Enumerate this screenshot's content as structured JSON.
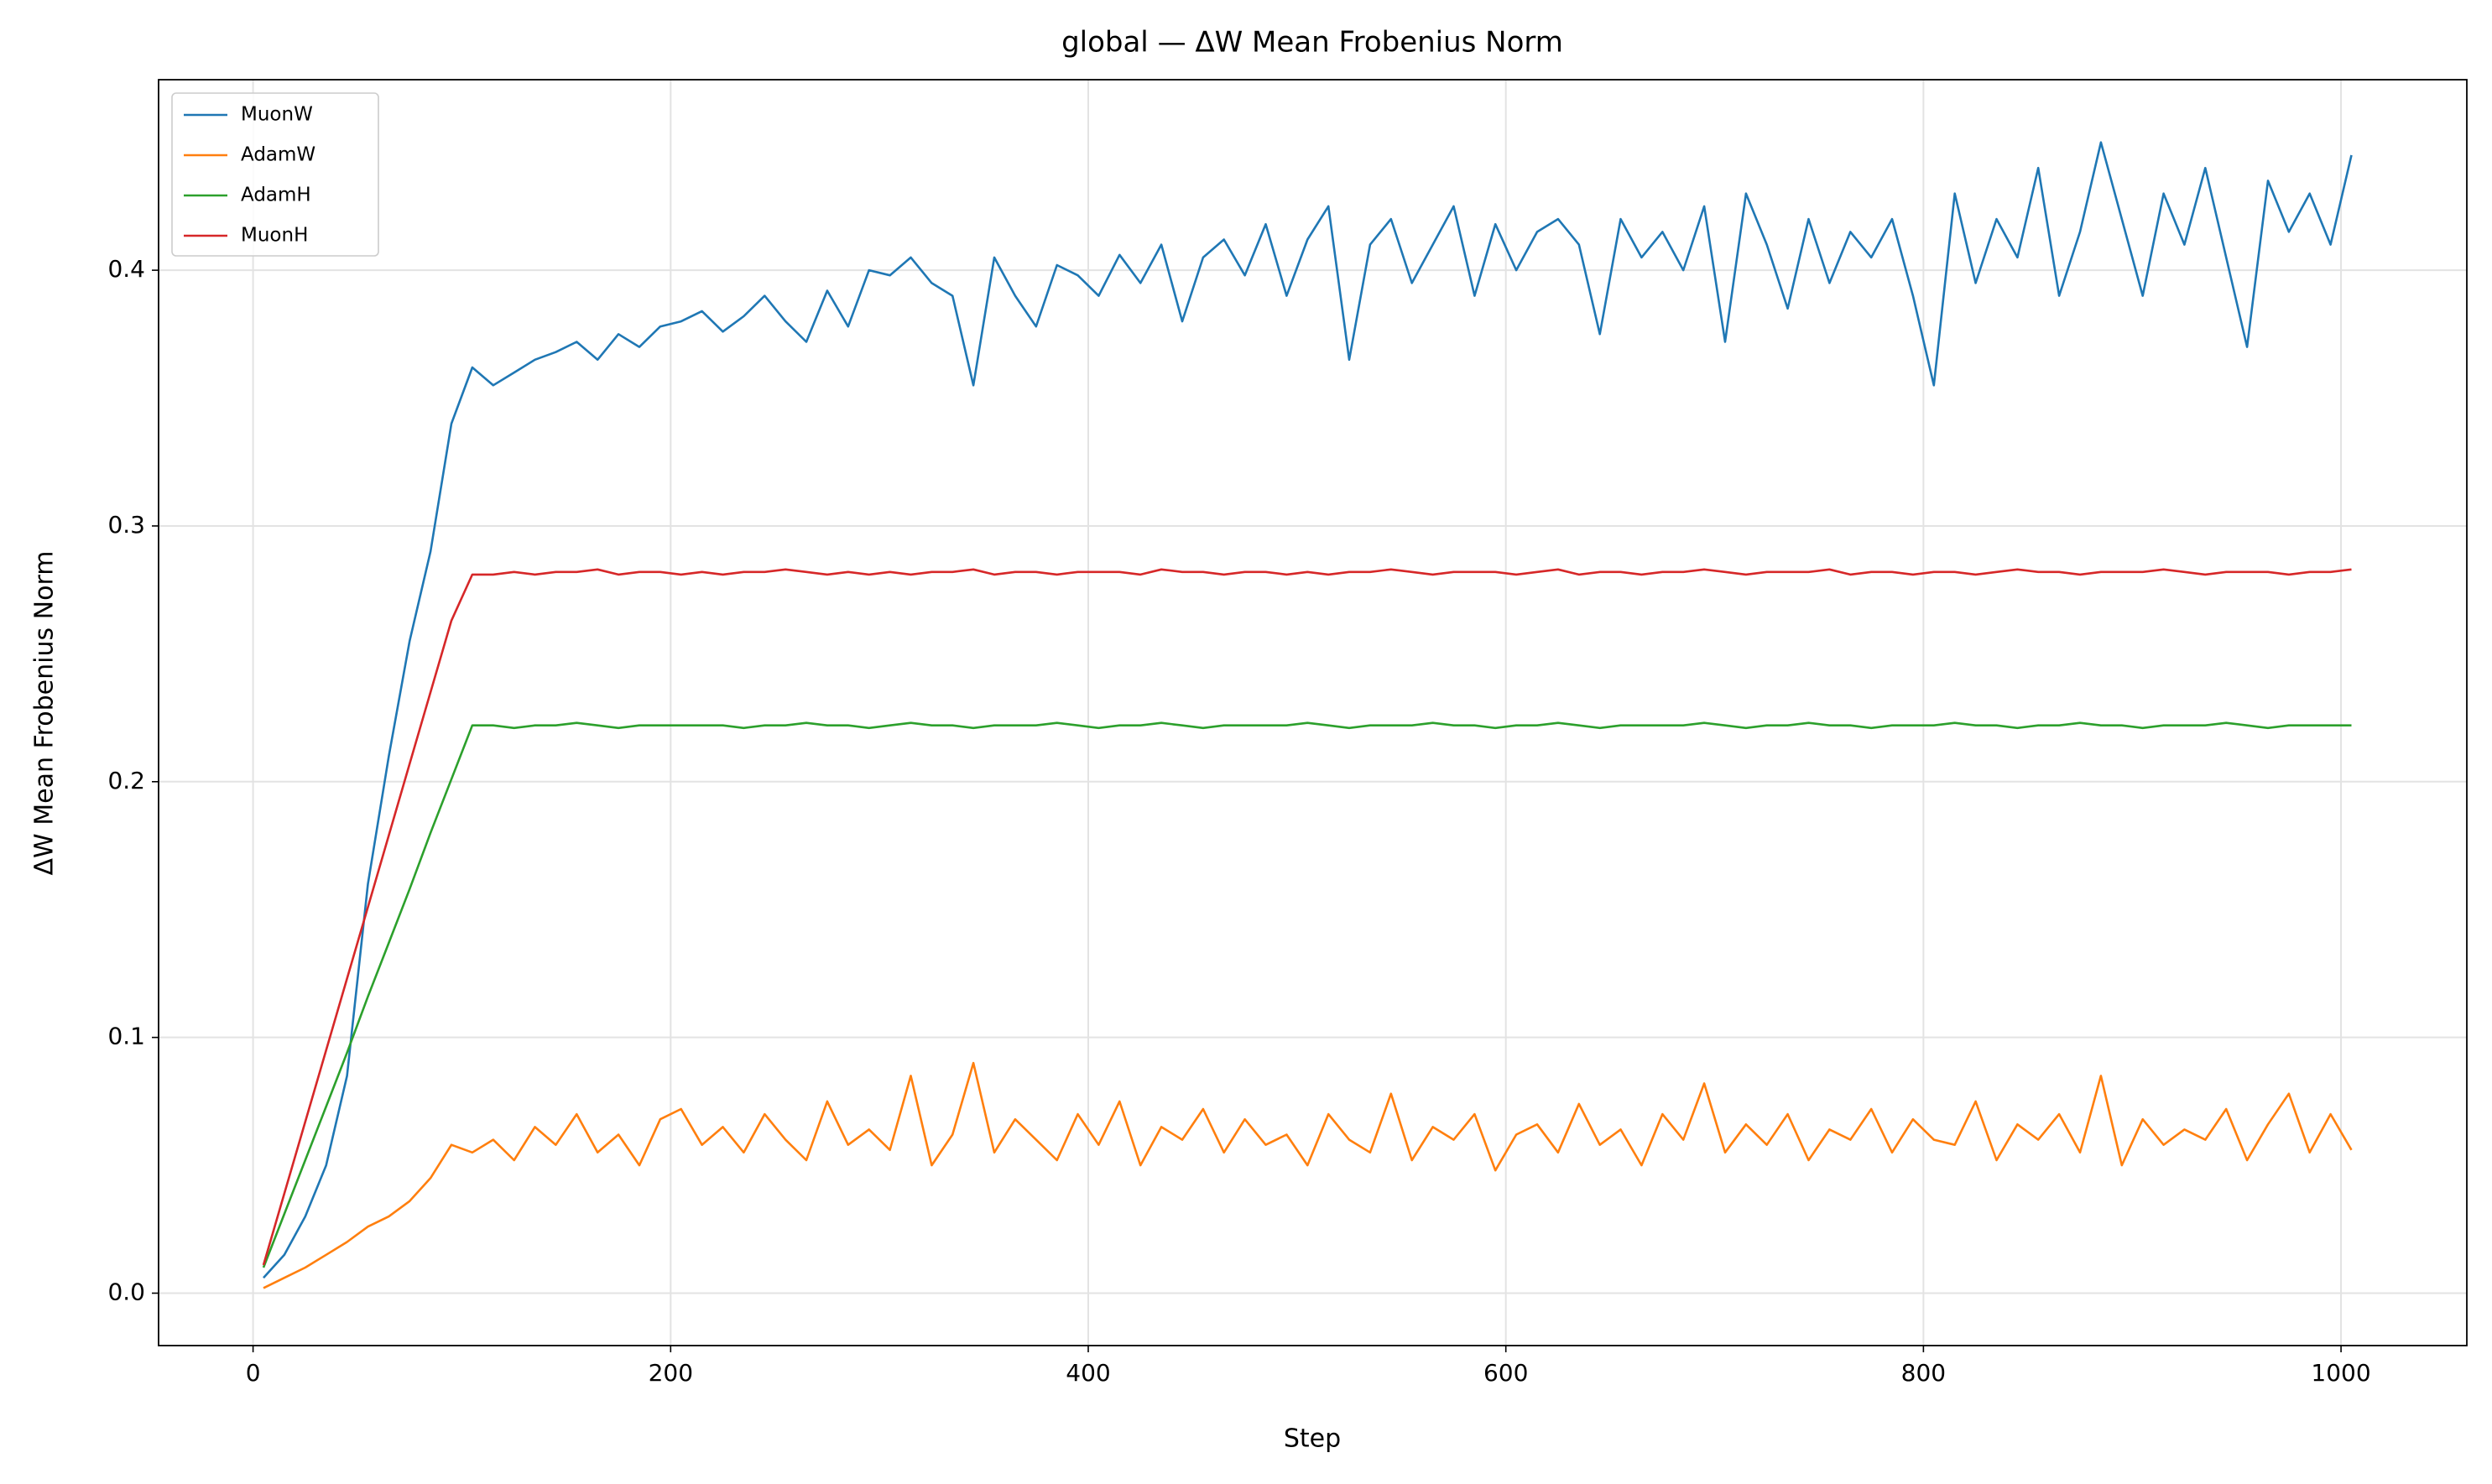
{
  "chart_data": {
    "type": "line",
    "title": "global — ΔW Mean Frobenius Norm",
    "x_label": "Step",
    "y_label": "ΔW Mean Frobenius Norm",
    "xlim": [
      -45.25,
      1060.25
    ],
    "ylim": [
      -0.0205,
      0.4745
    ],
    "xticks": [
      0,
      200,
      400,
      600,
      800,
      1000
    ],
    "yticks": [
      {
        "value": 0,
        "label": "0.0"
      },
      0.1,
      0.2,
      0.3,
      0.4
    ],
    "grid": true,
    "legend": "upper left",
    "x": [
      5,
      15,
      25,
      35,
      45,
      55,
      65,
      75,
      85,
      95,
      105,
      115,
      125,
      135,
      145,
      155,
      165,
      175,
      185,
      195,
      205,
      215,
      225,
      235,
      245,
      255,
      265,
      275,
      285,
      295,
      305,
      315,
      325,
      335,
      345,
      355,
      365,
      375,
      385,
      395,
      405,
      415,
      425,
      435,
      445,
      455,
      465,
      475,
      485,
      495,
      505,
      515,
      525,
      535,
      545,
      555,
      565,
      575,
      585,
      595,
      605,
      615,
      625,
      635,
      645,
      655,
      665,
      675,
      685,
      695,
      705,
      715,
      725,
      735,
      745,
      755,
      765,
      775,
      785,
      795,
      805,
      815,
      825,
      835,
      845,
      855,
      865,
      875,
      885,
      895,
      905,
      915,
      925,
      935,
      945,
      955,
      965,
      975,
      985,
      995,
      1005
    ],
    "series": [
      {
        "name": "MuonW",
        "color": "#1f77b4",
        "values": [
          0.006,
          0.015,
          0.03,
          0.05,
          0.085,
          0.16,
          0.21,
          0.255,
          0.29,
          0.34,
          0.362,
          0.355,
          0.36,
          0.365,
          0.368,
          0.372,
          0.365,
          0.375,
          0.37,
          0.378,
          0.38,
          0.384,
          0.376,
          0.382,
          0.39,
          0.38,
          0.372,
          0.392,
          0.378,
          0.4,
          0.398,
          0.405,
          0.395,
          0.39,
          0.355,
          0.405,
          0.39,
          0.378,
          0.402,
          0.398,
          0.39,
          0.406,
          0.395,
          0.41,
          0.38,
          0.405,
          0.412,
          0.398,
          0.418,
          0.39,
          0.412,
          0.425,
          0.365,
          0.41,
          0.42,
          0.395,
          0.41,
          0.425,
          0.39,
          0.418,
          0.4,
          0.415,
          0.42,
          0.41,
          0.375,
          0.42,
          0.405,
          0.415,
          0.4,
          0.425,
          0.372,
          0.43,
          0.41,
          0.385,
          0.42,
          0.395,
          0.415,
          0.405,
          0.42,
          0.39,
          0.355,
          0.43,
          0.395,
          0.42,
          0.405,
          0.44,
          0.39,
          0.415,
          0.45,
          0.42,
          0.39,
          0.43,
          0.41,
          0.44,
          0.405,
          0.37,
          0.435,
          0.415,
          0.43,
          0.41,
          0.445
        ]
      },
      {
        "name": "AdamW",
        "color": "#ff7f0e",
        "values": [
          0.002,
          0.006,
          0.01,
          0.015,
          0.02,
          0.026,
          0.03,
          0.036,
          0.045,
          0.058,
          0.055,
          0.06,
          0.052,
          0.065,
          0.058,
          0.07,
          0.055,
          0.062,
          0.05,
          0.068,
          0.072,
          0.058,
          0.065,
          0.055,
          0.07,
          0.06,
          0.052,
          0.075,
          0.058,
          0.064,
          0.056,
          0.085,
          0.05,
          0.062,
          0.09,
          0.055,
          0.068,
          0.06,
          0.052,
          0.07,
          0.058,
          0.075,
          0.05,
          0.065,
          0.06,
          0.072,
          0.055,
          0.068,
          0.058,
          0.062,
          0.05,
          0.07,
          0.06,
          0.055,
          0.078,
          0.052,
          0.065,
          0.06,
          0.07,
          0.048,
          0.062,
          0.066,
          0.055,
          0.074,
          0.058,
          0.064,
          0.05,
          0.07,
          0.06,
          0.082,
          0.055,
          0.066,
          0.058,
          0.07,
          0.052,
          0.064,
          0.06,
          0.072,
          0.055,
          0.068,
          0.06,
          0.058,
          0.075,
          0.052,
          0.066,
          0.06,
          0.07,
          0.055,
          0.085,
          0.05,
          0.068,
          0.058,
          0.064,
          0.06,
          0.072,
          0.052,
          0.066,
          0.078,
          0.055,
          0.07,
          0.056
        ]
      },
      {
        "name": "AdamH",
        "color": "#2ca02c",
        "values": [
          0.01,
          0.031,
          0.052,
          0.073,
          0.094,
          0.116,
          0.137,
          0.158,
          0.18,
          0.201,
          0.222,
          0.222,
          0.221,
          0.222,
          0.222,
          0.223,
          0.222,
          0.221,
          0.222,
          0.222,
          0.222,
          0.222,
          0.222,
          0.221,
          0.222,
          0.222,
          0.223,
          0.222,
          0.222,
          0.221,
          0.222,
          0.223,
          0.222,
          0.222,
          0.221,
          0.222,
          0.222,
          0.222,
          0.223,
          0.222,
          0.221,
          0.222,
          0.222,
          0.223,
          0.222,
          0.221,
          0.222,
          0.222,
          0.222,
          0.222,
          0.223,
          0.222,
          0.221,
          0.222,
          0.222,
          0.222,
          0.223,
          0.222,
          0.222,
          0.221,
          0.222,
          0.222,
          0.223,
          0.222,
          0.221,
          0.222,
          0.222,
          0.222,
          0.222,
          0.223,
          0.222,
          0.221,
          0.222,
          0.222,
          0.223,
          0.222,
          0.222,
          0.221,
          0.222,
          0.222,
          0.222,
          0.223,
          0.222,
          0.222,
          0.221,
          0.222,
          0.222,
          0.223,
          0.222,
          0.222,
          0.221,
          0.222,
          0.222,
          0.222,
          0.223,
          0.222,
          0.221,
          0.222,
          0.222,
          0.222,
          0.222
        ]
      },
      {
        "name": "MuonH",
        "color": "#d62728",
        "values": [
          0.011,
          0.039,
          0.067,
          0.095,
          0.123,
          0.151,
          0.179,
          0.207,
          0.235,
          0.263,
          0.281,
          0.281,
          0.282,
          0.281,
          0.282,
          0.282,
          0.283,
          0.281,
          0.282,
          0.282,
          0.281,
          0.282,
          0.281,
          0.282,
          0.282,
          0.283,
          0.282,
          0.281,
          0.282,
          0.281,
          0.282,
          0.281,
          0.282,
          0.282,
          0.283,
          0.281,
          0.282,
          0.282,
          0.281,
          0.282,
          0.282,
          0.282,
          0.281,
          0.283,
          0.282,
          0.282,
          0.281,
          0.282,
          0.282,
          0.281,
          0.282,
          0.281,
          0.282,
          0.282,
          0.283,
          0.282,
          0.281,
          0.282,
          0.282,
          0.282,
          0.281,
          0.282,
          0.283,
          0.281,
          0.282,
          0.282,
          0.281,
          0.282,
          0.282,
          0.283,
          0.282,
          0.281,
          0.282,
          0.282,
          0.282,
          0.283,
          0.281,
          0.282,
          0.282,
          0.281,
          0.282,
          0.282,
          0.281,
          0.282,
          0.283,
          0.282,
          0.282,
          0.281,
          0.282,
          0.282,
          0.282,
          0.283,
          0.282,
          0.281,
          0.282,
          0.282,
          0.282,
          0.281,
          0.282,
          0.282,
          0.283
        ]
      }
    ]
  }
}
